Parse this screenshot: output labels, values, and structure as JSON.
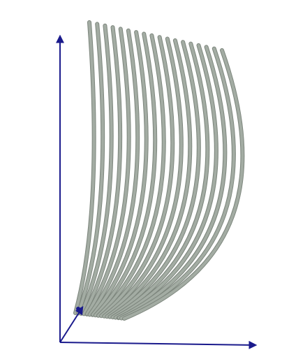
{
  "scene": {
    "colors": {
      "background": "#ffffff",
      "axis": "#1a1a8c",
      "curve": "#a3aca3",
      "curve_edge": "#7d867d"
    },
    "axes": [
      "x-axis",
      "y-axis",
      "z-axis"
    ],
    "surface": {
      "type": "parametric-curve-family",
      "curve_count": 18
    }
  }
}
